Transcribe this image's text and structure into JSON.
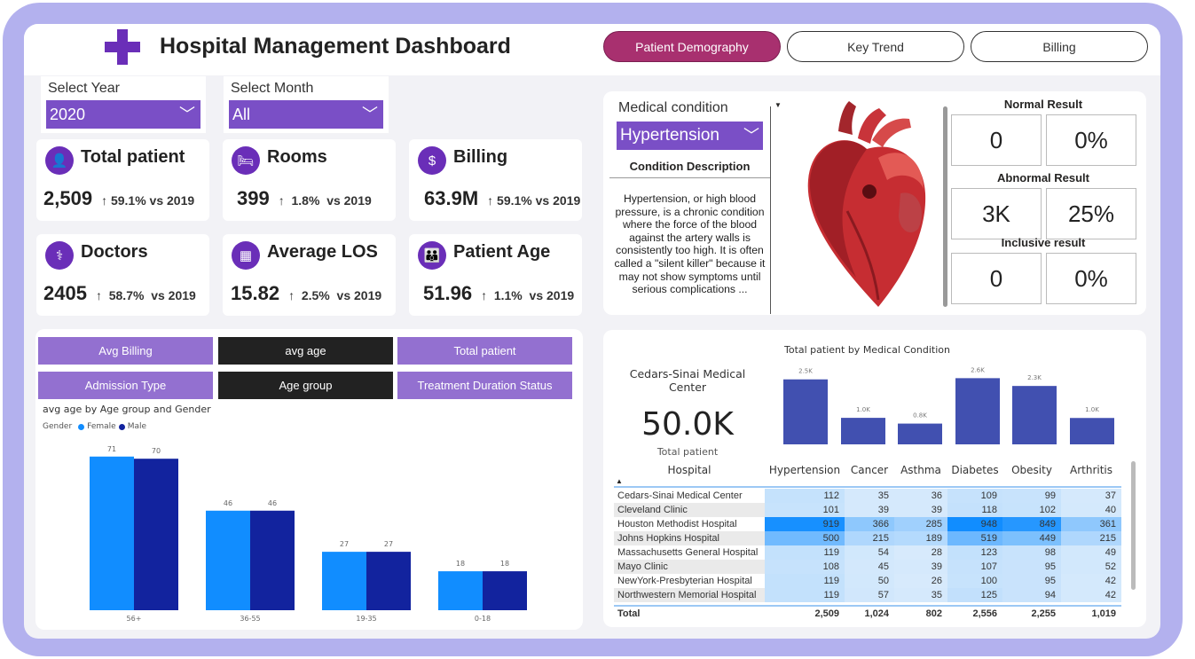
{
  "header": {
    "title": "Hospital Management Dashboard",
    "logo_icon": "medical-cross-icon",
    "tabs": [
      {
        "label": "Patient Demography",
        "active": true
      },
      {
        "label": "Key Trend",
        "active": false
      },
      {
        "label": "Billing",
        "active": false
      }
    ]
  },
  "filters": {
    "year": {
      "label": "Select Year",
      "value": "2020"
    },
    "month": {
      "label": "Select Month",
      "value": "All"
    }
  },
  "kpis": [
    {
      "title": "Total patient",
      "value": "2,509",
      "change": "↑ 59.1% vs 2019",
      "icon": "patient-monitor-icon"
    },
    {
      "title": "Rooms",
      "value": "399",
      "change": "↑  1.8%  vs 2019",
      "icon": "bed-icon"
    },
    {
      "title": "Billing",
      "value": "63.9M",
      "change": "↑ 59.1% vs 2019",
      "icon": "money-bag-icon"
    },
    {
      "title": "Doctors",
      "value": "2405",
      "change": "↑  58.7%  vs 2019",
      "icon": "doctor-icon"
    },
    {
      "title": "Average LOS",
      "value": "15.82",
      "change": "↑  2.5%  vs 2019",
      "icon": "calendar-icon"
    },
    {
      "title": "Patient Age",
      "value": "51.96",
      "change": "↑  1.1%  vs 2019",
      "icon": "family-icon"
    }
  ],
  "selector_buttons": [
    [
      "Avg Billing",
      "avg age",
      "Total patient"
    ],
    [
      "Admission Type",
      "Age group",
      "Treatment Duration Status"
    ]
  ],
  "condition": {
    "label": "Medical condition",
    "value": "Hypertension",
    "desc_title": "Condition Description",
    "description": "Hypertension, or high blood pressure, is a chronic condition where the force of the blood against the artery walls is consistently too high. It is often called a \"silent killer\" because it may not show symptoms until serious complications ..."
  },
  "results": [
    {
      "label": "Normal Result",
      "count": "0",
      "pct": "0%"
    },
    {
      "label": "Abnormal Result",
      "count": "3K",
      "pct": "25%"
    },
    {
      "label": "Inclusive result",
      "count": "0",
      "pct": "0%"
    }
  ],
  "hospital_card": {
    "name": "Cedars-Sinai Medical Center",
    "value": "50.0K",
    "caption": "Total patient"
  },
  "colors": {
    "accent": "#7a4fc6",
    "female": "#118dff",
    "male": "#12239e",
    "bar": "#4150b0",
    "heat_low": "#ddedfc",
    "heat_high": "#118dff"
  },
  "chart_data": [
    {
      "type": "bar",
      "title": "avg age by Age group and Gender",
      "legend_title": "Gender",
      "legend": "top-left",
      "categories": [
        "56+",
        "36-55",
        "19-35",
        "0-18"
      ],
      "series": [
        {
          "name": "Female",
          "values": [
            71,
            46,
            27,
            18
          ]
        },
        {
          "name": "Male",
          "values": [
            70,
            46,
            27,
            18
          ]
        }
      ]
    },
    {
      "type": "bar",
      "title": "Total patient by Medical Condition",
      "categories": [
        "Hypertension",
        "Cancer",
        "Asthma",
        "Diabetes",
        "Obesity",
        "Arthritis"
      ],
      "values": [
        2509,
        1024,
        802,
        2556,
        2255,
        1019
      ],
      "data_labels": [
        "2.5K",
        "1.0K",
        "0.8K",
        "2.6K",
        "2.3K",
        "1.0K"
      ]
    },
    {
      "type": "table",
      "columns": [
        "Hospital",
        "Hypertension",
        "Cancer",
        "Asthma",
        "Diabetes",
        "Obesity",
        "Arthritis"
      ],
      "rows": [
        [
          "Cedars-Sinai Medical Center",
          112,
          35,
          36,
          109,
          99,
          37
        ],
        [
          "Cleveland Clinic",
          101,
          39,
          39,
          118,
          102,
          40
        ],
        [
          "Houston Methodist Hospital",
          919,
          366,
          285,
          948,
          849,
          361
        ],
        [
          "Johns Hopkins Hospital",
          500,
          215,
          189,
          519,
          449,
          215
        ],
        [
          "Massachusetts General Hospital",
          119,
          54,
          28,
          123,
          98,
          49
        ],
        [
          "Mayo Clinic",
          108,
          45,
          39,
          107,
          95,
          52
        ],
        [
          "NewYork-Presbyterian Hospital",
          119,
          50,
          26,
          100,
          95,
          42
        ],
        [
          "Northwestern Memorial Hospital",
          119,
          57,
          35,
          125,
          94,
          42
        ]
      ],
      "total": [
        "Total",
        "2,509",
        "1,024",
        "802",
        "2,556",
        "2,255",
        "1,019"
      ]
    }
  ]
}
